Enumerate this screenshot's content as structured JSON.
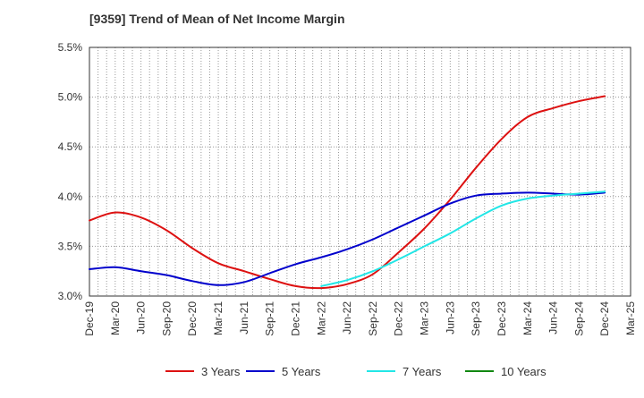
{
  "chart_data": {
    "type": "line",
    "title": "[9359]  Trend of Mean of Net Income Margin",
    "xlabel": "",
    "ylabel": "",
    "x_ticks": [
      "Dec-19",
      "Mar-20",
      "Jun-20",
      "Sep-20",
      "Dec-20",
      "Mar-21",
      "Jun-21",
      "Sep-21",
      "Dec-21",
      "Mar-22",
      "Jun-22",
      "Sep-22",
      "Dec-22",
      "Mar-23",
      "Jun-23",
      "Sep-23",
      "Dec-23",
      "Mar-24",
      "Jun-24",
      "Sep-24",
      "Dec-24",
      "Mar-25"
    ],
    "y_ticks": [
      "3.0%",
      "3.5%",
      "4.0%",
      "4.5%",
      "5.0%",
      "5.5%"
    ],
    "ylim": [
      3.0,
      5.5
    ],
    "grid": true,
    "legend_position": "bottom",
    "series": [
      {
        "name": "3 Years",
        "color": "#dd1111",
        "points": [
          [
            "Dec-19",
            3.76
          ],
          [
            "Mar-20",
            3.84
          ],
          [
            "Jun-20",
            3.79
          ],
          [
            "Sep-20",
            3.66
          ],
          [
            "Dec-20",
            3.48
          ],
          [
            "Mar-21",
            3.33
          ],
          [
            "Jun-21",
            3.25
          ],
          [
            "Sep-21",
            3.17
          ],
          [
            "Dec-21",
            3.1
          ],
          [
            "Mar-22",
            3.08
          ],
          [
            "Jun-22",
            3.12
          ],
          [
            "Sep-22",
            3.22
          ],
          [
            "Dec-22",
            3.44
          ],
          [
            "Mar-23",
            3.68
          ],
          [
            "Jun-23",
            3.97
          ],
          [
            "Sep-23",
            4.29
          ],
          [
            "Dec-23",
            4.58
          ],
          [
            "Mar-24",
            4.8
          ],
          [
            "Jun-24",
            4.89
          ],
          [
            "Sep-24",
            4.96
          ],
          [
            "Dec-24",
            5.01
          ]
        ]
      },
      {
        "name": "5 Years",
        "color": "#0000cc",
        "points": [
          [
            "Dec-19",
            3.27
          ],
          [
            "Mar-20",
            3.29
          ],
          [
            "Jun-20",
            3.25
          ],
          [
            "Sep-20",
            3.21
          ],
          [
            "Dec-20",
            3.15
          ],
          [
            "Mar-21",
            3.11
          ],
          [
            "Jun-21",
            3.14
          ],
          [
            "Sep-21",
            3.23
          ],
          [
            "Dec-21",
            3.32
          ],
          [
            "Mar-22",
            3.39
          ],
          [
            "Jun-22",
            3.47
          ],
          [
            "Sep-22",
            3.57
          ],
          [
            "Dec-22",
            3.69
          ],
          [
            "Mar-23",
            3.81
          ],
          [
            "Jun-23",
            3.93
          ],
          [
            "Sep-23",
            4.01
          ],
          [
            "Dec-23",
            4.03
          ],
          [
            "Mar-24",
            4.04
          ],
          [
            "Jun-24",
            4.03
          ],
          [
            "Sep-24",
            4.02
          ],
          [
            "Dec-24",
            4.04
          ]
        ]
      },
      {
        "name": "7 Years",
        "color": "#22e6e6",
        "points": [
          [
            "Mar-22",
            3.1
          ],
          [
            "Jun-22",
            3.16
          ],
          [
            "Sep-22",
            3.25
          ],
          [
            "Dec-22",
            3.37
          ],
          [
            "Mar-23",
            3.5
          ],
          [
            "Jun-23",
            3.63
          ],
          [
            "Sep-23",
            3.78
          ],
          [
            "Dec-23",
            3.91
          ],
          [
            "Mar-24",
            3.98
          ],
          [
            "Jun-24",
            4.01
          ],
          [
            "Sep-24",
            4.03
          ],
          [
            "Dec-24",
            4.05
          ]
        ]
      },
      {
        "name": "10 Years",
        "color": "#118811",
        "points": []
      }
    ]
  }
}
